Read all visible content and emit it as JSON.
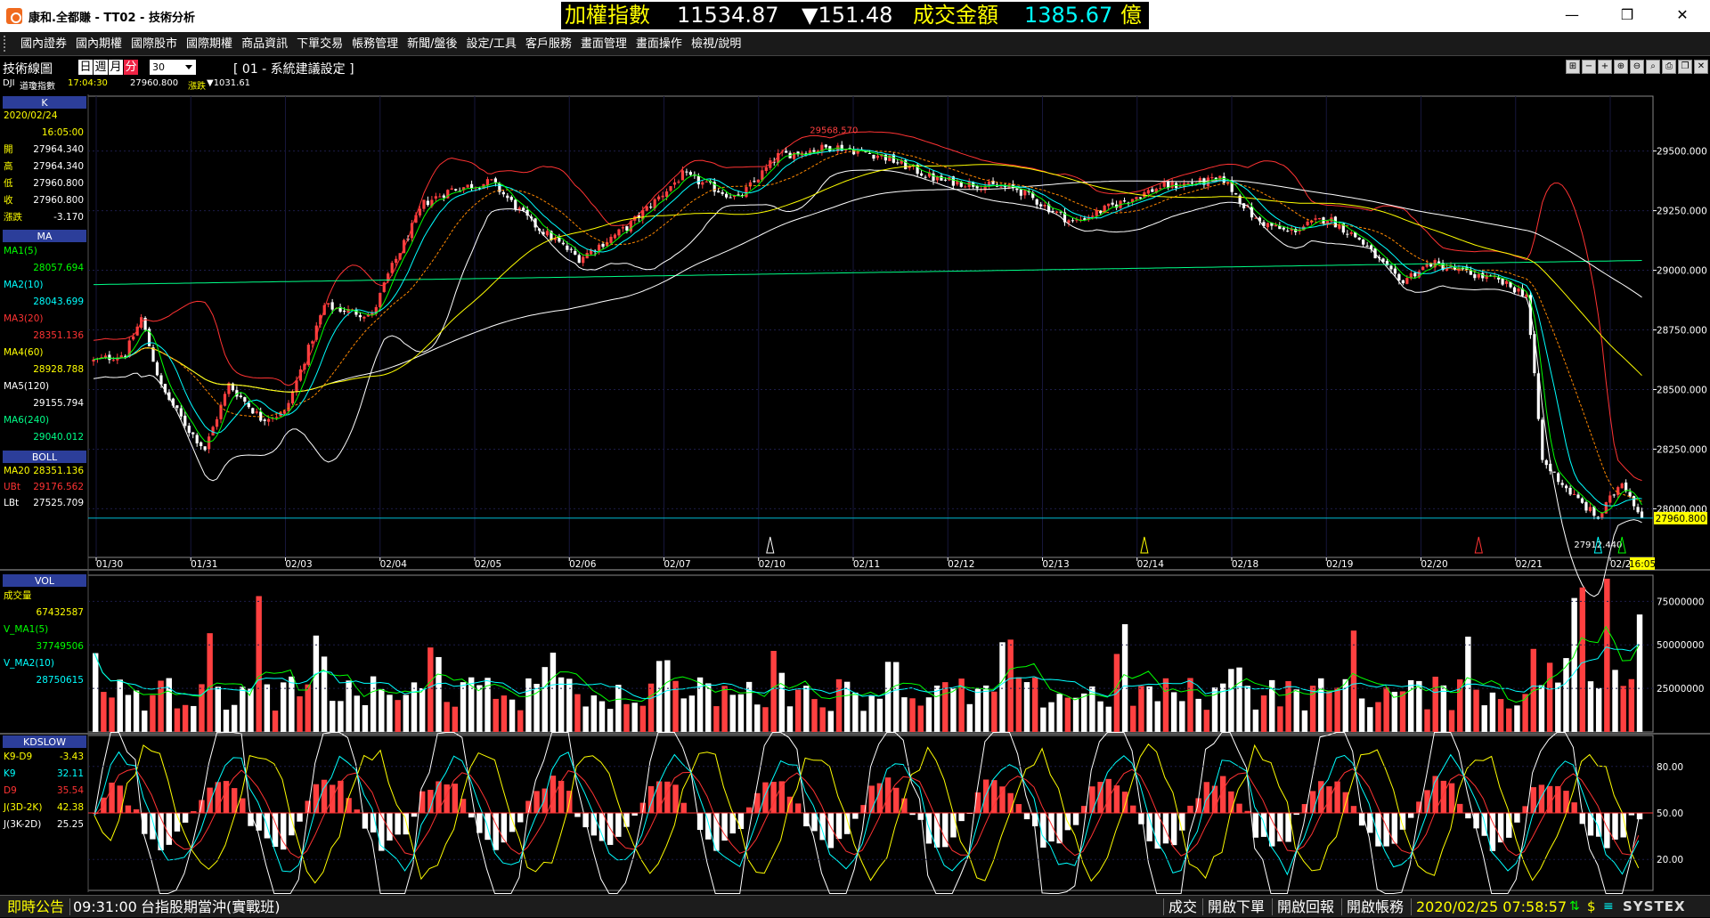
{
  "window": {
    "title": "康和.全都賺 - TT02 - 技術分析",
    "controls": [
      "minimize",
      "maximize",
      "close"
    ]
  },
  "ticker": {
    "index_label": "加權指數",
    "index_value": "11534.87",
    "change": "▼151.48",
    "amount_label": "成交金額",
    "amount_value": "1385.67",
    "amount_unit": "億",
    "colors": {
      "label": "#ffff00",
      "value": "#ffffff",
      "down": "#ffffff",
      "amount": "#00ffff"
    }
  },
  "menu": [
    "國內證券",
    "國內期權",
    "國際股市",
    "國際期權",
    "商品資訊",
    "下單交易",
    "帳務管理",
    "新聞/盤後",
    "設定/工具",
    "客戶服務",
    "畫面管理",
    "畫面操作",
    "檢視/說明"
  ],
  "toolbar": {
    "title": "技術線圖",
    "periods": [
      "日",
      "週",
      "月",
      "分"
    ],
    "active_period": "分",
    "interval": "30",
    "config": "[ 01 - 系統建議設定 ]",
    "tool_icons": [
      "grid-icon",
      "minus-icon",
      "plus-icon",
      "zoom-in-icon",
      "zoom-out-icon",
      "search-icon",
      "print-icon",
      "window-icon",
      "close-icon"
    ]
  },
  "quote_strip": {
    "symbol": "DJI",
    "name": "道瓊指數",
    "time": "17:04:30",
    "last": "27960.800",
    "change_label": "漲跌",
    "change_value": "▼1031.61"
  },
  "sidebar": {
    "k": {
      "header": "K",
      "date": "2020/02/24",
      "time": "16:05:00",
      "rows": [
        {
          "label": "開",
          "value": "27964.340"
        },
        {
          "label": "高",
          "value": "27964.340"
        },
        {
          "label": "低",
          "value": "27960.800"
        },
        {
          "label": "收",
          "value": "27960.800"
        },
        {
          "label": "漲跌",
          "value": "-3.170"
        }
      ]
    },
    "ma": {
      "header": "MA",
      "rows": [
        {
          "label": "MA1(5)",
          "value": "28057.694",
          "color": "#00ff00"
        },
        {
          "label": "MA2(10)",
          "value": "28043.699",
          "color": "#00ffff"
        },
        {
          "label": "MA3(20)",
          "value": "28351.136",
          "color": "#ff3333"
        },
        {
          "label": "MA4(60)",
          "value": "28928.788",
          "color": "#ffff00"
        },
        {
          "label": "MA5(120)",
          "value": "29155.794",
          "color": "#ffffff"
        },
        {
          "label": "MA6(240)",
          "value": "29040.012",
          "color": "#00ff88"
        }
      ]
    },
    "boll": {
      "header": "BOLL",
      "rows": [
        {
          "label": "MA20",
          "value": "28351.136",
          "color": "#ffff00"
        },
        {
          "label": "UBt",
          "value": "29176.562",
          "color": "#ff3333"
        },
        {
          "label": "LBt",
          "value": "27525.709",
          "color": "#ffffff"
        }
      ]
    },
    "vol": {
      "header": "VOL",
      "rows": [
        {
          "label": "成交量",
          "value": "67432587",
          "color": "#ffff00"
        },
        {
          "label": "V_MA1(5)",
          "value": "37749506",
          "color": "#00ff00"
        },
        {
          "label": "V_MA2(10)",
          "value": "28750615",
          "color": "#00ffff"
        }
      ]
    },
    "kd": {
      "header": "KDSLOW",
      "rows": [
        {
          "label": "K9-D9",
          "value": "-3.43",
          "color": "#ffff00"
        },
        {
          "label": "K9",
          "value": "32.11",
          "color": "#00ffff"
        },
        {
          "label": "D9",
          "value": "35.54",
          "color": "#ff3333"
        },
        {
          "label": "J(3D-2K)",
          "value": "42.38",
          "color": "#ffff00"
        },
        {
          "label": "J(3K-2D)",
          "value": "25.25",
          "color": "#ffffff"
        }
      ]
    }
  },
  "chart_data": [
    {
      "type": "candlestick",
      "title": "DJI 道瓊指數",
      "x_ticks": [
        "01/30",
        "01/31",
        "02/03",
        "02/04",
        "02/05",
        "02/06",
        "02/07",
        "02/10",
        "02/11",
        "02/12",
        "02/13",
        "02/14",
        "02/18",
        "02/19",
        "02/20",
        "02/21",
        "02/24",
        "16:05"
      ],
      "y_ticks": [
        "29500.000",
        "29250.000",
        "29000.000",
        "28750.000",
        "28500.000",
        "28250.000",
        "28000.000"
      ],
      "ylim": [
        27800,
        29730
      ],
      "last_price_label": "27960.800",
      "high_annotation": "29568.570",
      "low_annotation": "27912.440",
      "anchors": [
        {
          "x": 0,
          "y": 28620
        },
        {
          "x": 8,
          "y": 28650
        },
        {
          "x": 12,
          "y": 28800
        },
        {
          "x": 17,
          "y": 28510
        },
        {
          "x": 24,
          "y": 28330
        },
        {
          "x": 28,
          "y": 28250
        },
        {
          "x": 34,
          "y": 28520
        },
        {
          "x": 42,
          "y": 28380
        },
        {
          "x": 48,
          "y": 28400
        },
        {
          "x": 58,
          "y": 28850
        },
        {
          "x": 70,
          "y": 28810
        },
        {
          "x": 74,
          "y": 28980
        },
        {
          "x": 83,
          "y": 29280
        },
        {
          "x": 90,
          "y": 29340
        },
        {
          "x": 100,
          "y": 29370
        },
        {
          "x": 110,
          "y": 29200
        },
        {
          "x": 122,
          "y": 29050
        },
        {
          "x": 134,
          "y": 29180
        },
        {
          "x": 148,
          "y": 29400
        },
        {
          "x": 162,
          "y": 29300
        },
        {
          "x": 172,
          "y": 29480
        },
        {
          "x": 186,
          "y": 29520
        },
        {
          "x": 198,
          "y": 29480
        },
        {
          "x": 212,
          "y": 29380
        },
        {
          "x": 232,
          "y": 29340
        },
        {
          "x": 246,
          "y": 29200
        },
        {
          "x": 256,
          "y": 29270
        },
        {
          "x": 268,
          "y": 29350
        },
        {
          "x": 284,
          "y": 29380
        },
        {
          "x": 292,
          "y": 29210
        },
        {
          "x": 300,
          "y": 29160
        },
        {
          "x": 310,
          "y": 29220
        },
        {
          "x": 318,
          "y": 29130
        },
        {
          "x": 328,
          "y": 28950
        },
        {
          "x": 336,
          "y": 29030
        },
        {
          "x": 345,
          "y": 28990
        },
        {
          "x": 352,
          "y": 28960
        },
        {
          "x": 360,
          "y": 28900
        },
        {
          "x": 364,
          "y": 28200
        },
        {
          "x": 372,
          "y": 28050
        },
        {
          "x": 378,
          "y": 27960
        },
        {
          "x": 384,
          "y": 28120
        },
        {
          "x": 389,
          "y": 27961
        }
      ],
      "overlays": [
        {
          "name": "MA1(5)",
          "color": "#00ff00"
        },
        {
          "name": "MA2(10)",
          "color": "#00ffff"
        },
        {
          "name": "MA3(20)",
          "color": "#ff8800"
        },
        {
          "name": "MA4(60)",
          "color": "#ffff00"
        },
        {
          "name": "MA5(120)",
          "color": "#ffffff"
        },
        {
          "name": "MA6(240)",
          "color": "#00ff88"
        },
        {
          "name": "BOLL UB",
          "color": "#ff3333"
        },
        {
          "name": "BOLL LB",
          "color": "#ffffff"
        }
      ]
    },
    {
      "type": "bar",
      "title": "VOL",
      "y_ticks": [
        "75000000",
        "50000000",
        "25000000"
      ],
      "ylim": [
        0,
        90000000
      ],
      "last_value": 67432587,
      "overlays": [
        {
          "name": "V_MA1(5)",
          "color": "#00ff00"
        },
        {
          "name": "V_MA2(10)",
          "color": "#00ffff"
        }
      ]
    },
    {
      "type": "line",
      "title": "KDSLOW",
      "y_ticks": [
        "80.00",
        "50.00",
        "20.00"
      ],
      "ylim": [
        0,
        100
      ],
      "series": [
        {
          "name": "K9",
          "color": "#00ffff"
        },
        {
          "name": "D9",
          "color": "#ff3333"
        },
        {
          "name": "J(3D-2K)",
          "color": "#ffff00"
        },
        {
          "name": "J(3K-2D)",
          "color": "#ffffff"
        }
      ]
    }
  ],
  "statusbar": {
    "label": "即時公告",
    "time": "09:31:00",
    "message": "台指股期當沖(實戰班)",
    "links": [
      "成交",
      "開啟下單",
      "開啟回報",
      "開啟帳務"
    ],
    "datetime": "2020/02/25 07:58:57",
    "brand": "SYSTEX"
  },
  "colors": {
    "up": "#ff4040",
    "down": "#ffffff",
    "grid": "#2a2a55",
    "axis": "#ffffff",
    "label_yellow": "#ffff00"
  }
}
